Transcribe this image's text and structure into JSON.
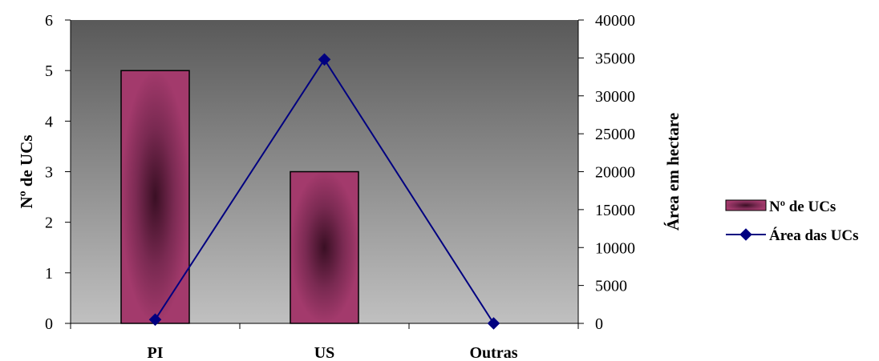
{
  "chart_data": {
    "type": "bar",
    "categories": [
      "PI",
      "US",
      "Outras"
    ],
    "series": [
      {
        "name": "Nº de UCs",
        "type": "bar",
        "axis": "left",
        "values": [
          5,
          3,
          0
        ],
        "color": "#9e3566"
      },
      {
        "name": "Área das UCs",
        "type": "line",
        "axis": "right",
        "values": [
          500,
          34800,
          0
        ],
        "color": "#000080"
      }
    ],
    "y_left": {
      "label": "Nº de UCs",
      "min": 0,
      "max": 6,
      "ticks": [
        0,
        1,
        2,
        3,
        4,
        5,
        6
      ]
    },
    "y_right": {
      "label": "Área em hectare",
      "min": 0,
      "max": 40000,
      "ticks": [
        0,
        5000,
        10000,
        15000,
        20000,
        25000,
        30000,
        35000,
        40000
      ]
    },
    "legend_position": "right",
    "plot_background": {
      "top": "#595959",
      "bottom": "#c0c0c0"
    },
    "grid": false
  }
}
